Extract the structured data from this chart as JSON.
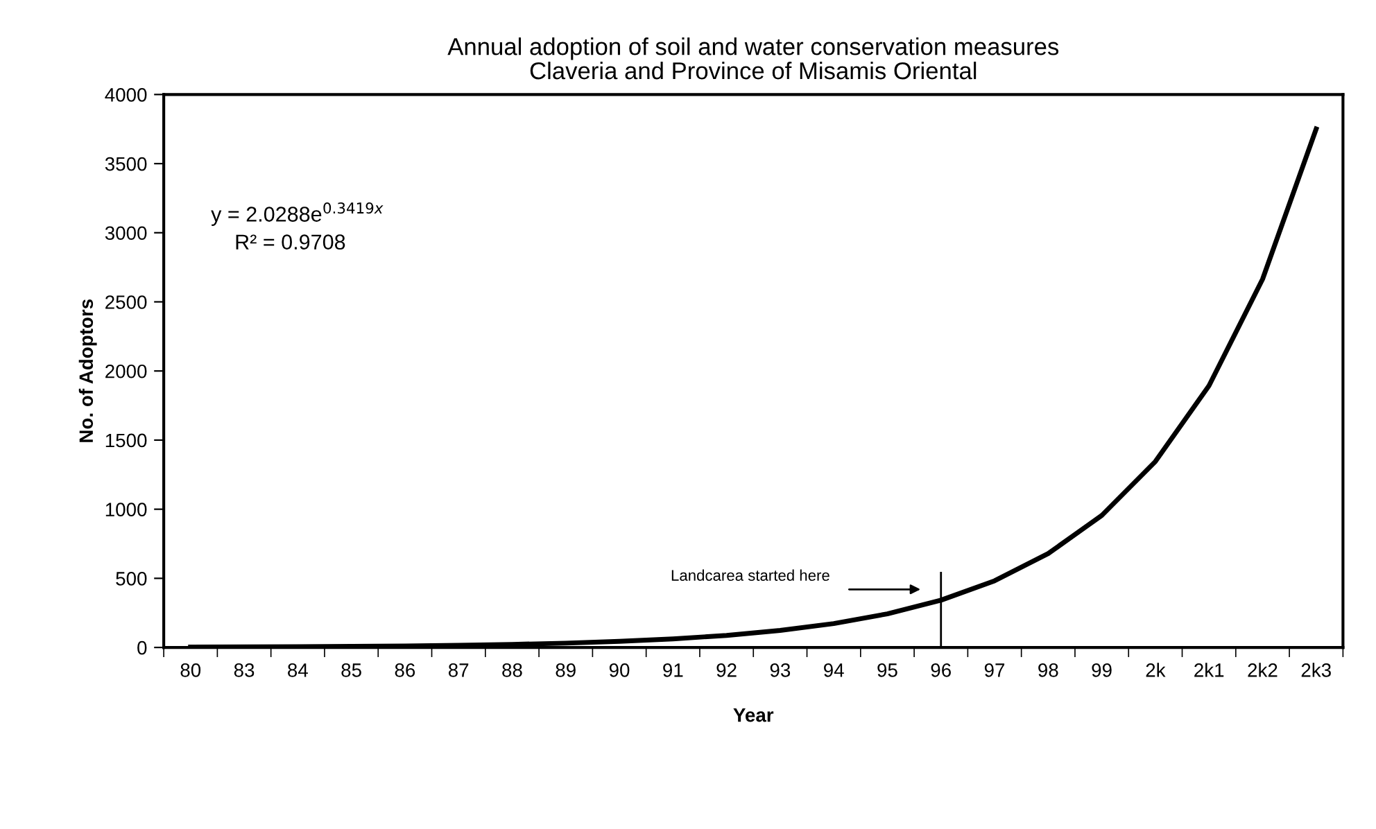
{
  "chart_data": {
    "type": "line",
    "title": "Annual adoption of soil and water conservation measures\nClaveria and Province of Misamis Oriental",
    "xlabel": "Year",
    "ylabel": "No. of Adoptors",
    "categories": [
      "80",
      "83",
      "84",
      "85",
      "86",
      "87",
      "88",
      "89",
      "90",
      "91",
      "92",
      "93",
      "94",
      "95",
      "96",
      "97",
      "98",
      "99",
      "2k",
      "2k1",
      "2k2",
      "2k3"
    ],
    "series": [
      {
        "color": "#000000",
        "values": [
          3,
          4,
          6,
          8,
          11,
          16,
          22,
          31,
          44,
          62,
          87,
          123,
          173,
          243,
          342,
          482,
          679,
          955,
          1345,
          1893,
          2664,
          3751
        ]
      }
    ],
    "ylim": [
      0,
      4000
    ],
    "yticks": [
      0,
      500,
      1000,
      1500,
      2000,
      2500,
      3000,
      3500,
      4000
    ],
    "grid": false,
    "legend": false,
    "marker": "none",
    "line_style": "solid",
    "ref_lines": [
      {
        "axis": "x",
        "value": "96",
        "label": null,
        "color": "#000000"
      }
    ],
    "annotations": [
      "y = 2.0288e$^{0.3419x}$",
      "R² = 0.9708",
      "Landcarea started here"
    ]
  }
}
